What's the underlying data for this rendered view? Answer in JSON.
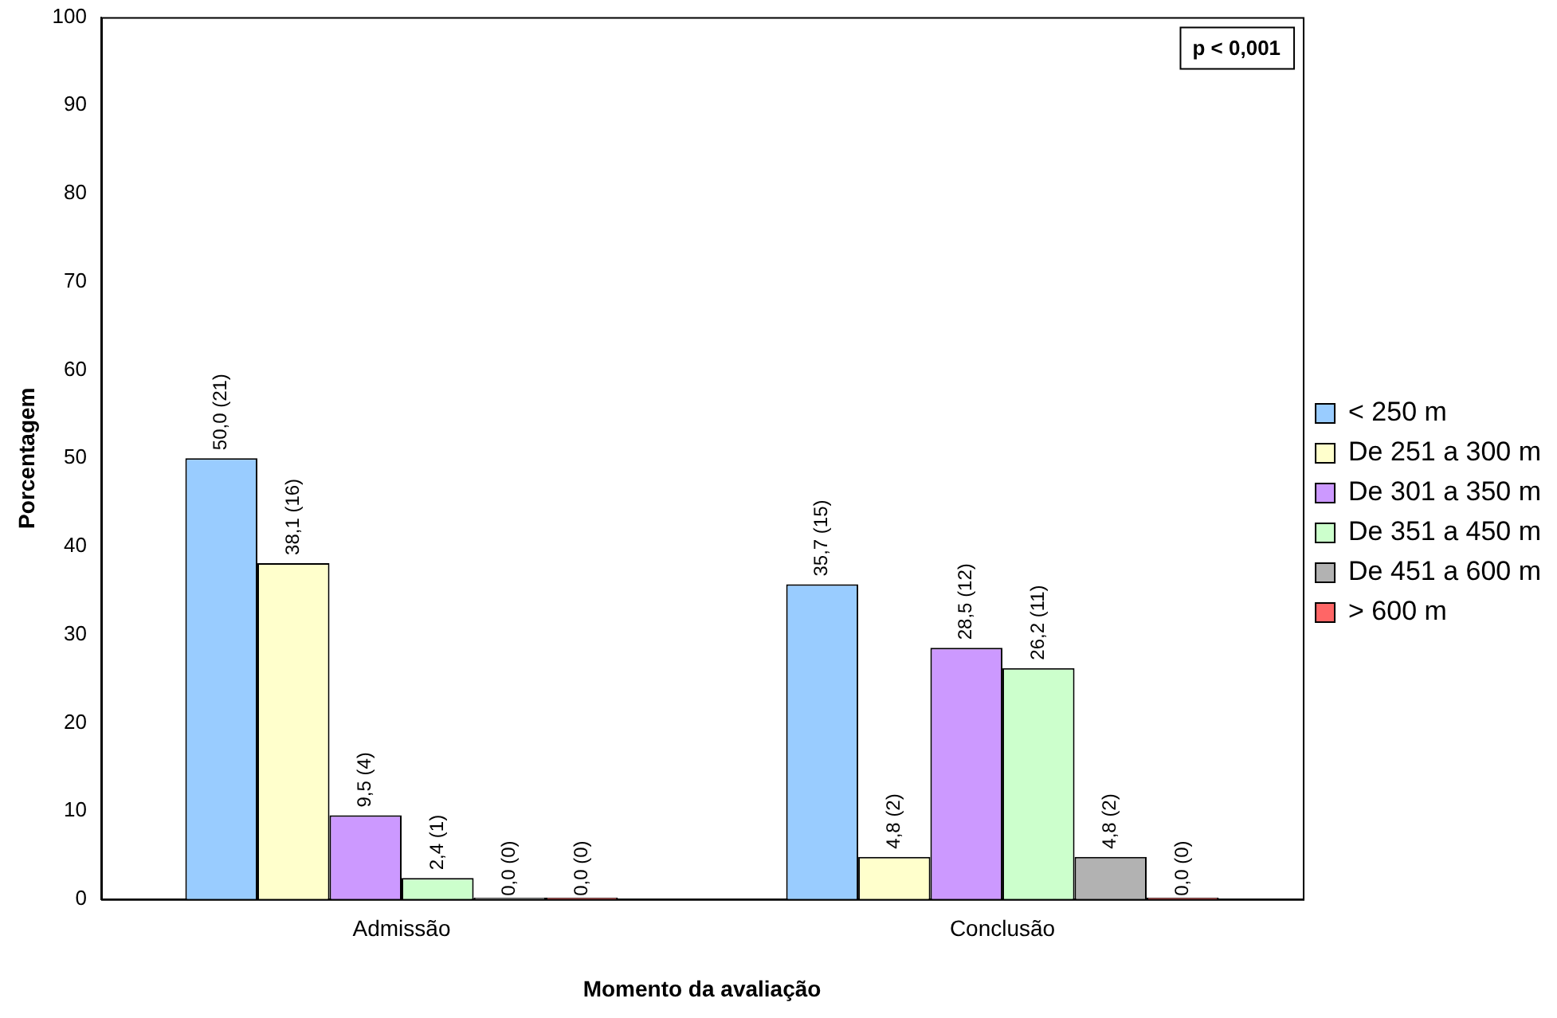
{
  "chart_data": {
    "type": "bar",
    "xlabel": "Momento da avaliação",
    "ylabel": "Porcentagem",
    "categories": [
      "Admissão",
      "Conclusão"
    ],
    "series": [
      {
        "name": "< 250 m",
        "color": "#99ccff",
        "values": [
          50.0,
          35.7
        ],
        "value_labels": [
          "50,0 (21)",
          "35,7 (15)"
        ]
      },
      {
        "name": "De 251 a 300 m",
        "color": "#ffffcc",
        "values": [
          38.1,
          4.8
        ],
        "value_labels": [
          "38,1 (16)",
          "4,8 (2)"
        ]
      },
      {
        "name": "De 301 a 350 m",
        "color": "#cc99ff",
        "values": [
          9.5,
          28.5
        ],
        "value_labels": [
          "9,5 (4)",
          "28,5 (12)"
        ]
      },
      {
        "name": "De 351 a 450 m",
        "color": "#ccffcc",
        "values": [
          2.4,
          26.2
        ],
        "value_labels": [
          "2,4 (1)",
          "26,2 (11)"
        ]
      },
      {
        "name": "De 451 a 600 m",
        "color": "#b2b2b2",
        "values": [
          0.0,
          4.8
        ],
        "value_labels": [
          "0,0 (0)",
          "4,8 (2)"
        ]
      },
      {
        "name": "> 600 m",
        "color": "#ff6666",
        "values": [
          0.0,
          0.0
        ],
        "value_labels": [
          "0,0 (0)",
          "0,0 (0)"
        ]
      }
    ],
    "ylim": [
      0,
      100
    ],
    "yticks": [
      0,
      10,
      20,
      30,
      40,
      50,
      60,
      70,
      80,
      90,
      100
    ],
    "grid": false,
    "legend": "right",
    "annotations": [
      "p < 0,001"
    ]
  }
}
